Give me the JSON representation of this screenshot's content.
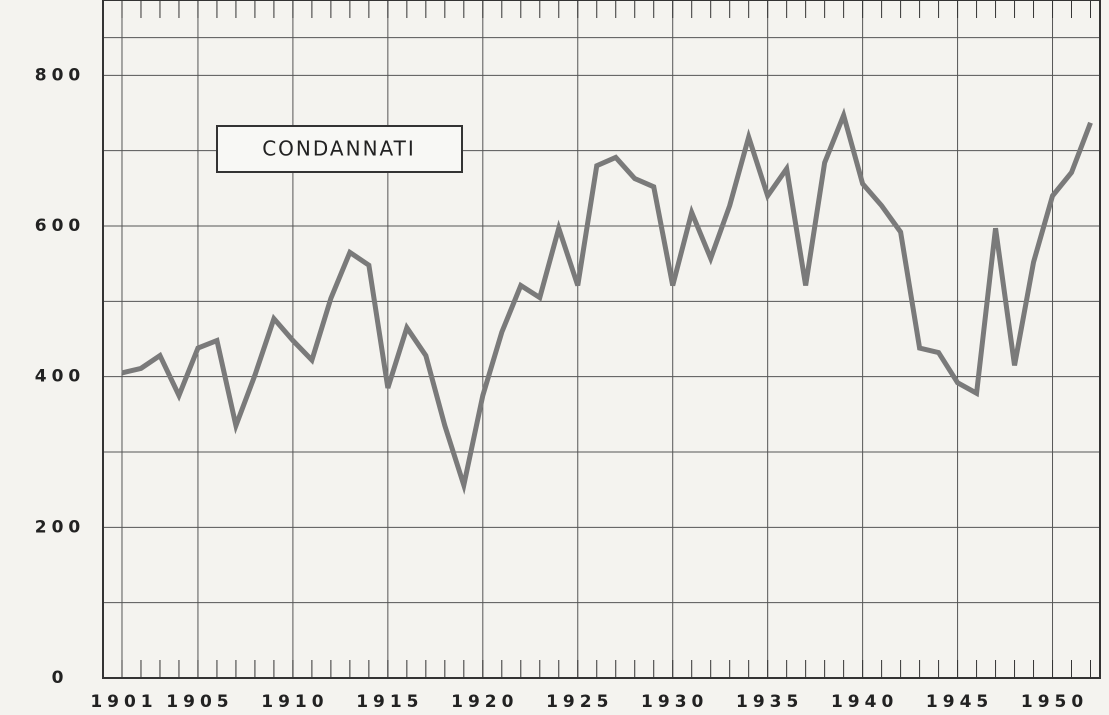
{
  "chart_data": {
    "type": "line",
    "annotation": "CONDANNATI",
    "x": [
      1901,
      1902,
      1903,
      1904,
      1905,
      1906,
      1907,
      1908,
      1909,
      1910,
      1911,
      1912,
      1913,
      1914,
      1915,
      1916,
      1917,
      1918,
      1919,
      1920,
      1921,
      1922,
      1923,
      1924,
      1925,
      1926,
      1927,
      1928,
      1929,
      1930,
      1931,
      1932,
      1933,
      1934,
      1935,
      1936,
      1937,
      1938,
      1939,
      1940,
      1941,
      1942,
      1943,
      1944,
      1945,
      1946,
      1947,
      1948,
      1949,
      1950,
      1951,
      1952
    ],
    "series": [
      {
        "color": "#7a7a7a",
        "values": [
          405,
          411,
          428,
          375,
          438,
          448,
          335,
          402,
          477,
          448,
          422,
          504,
          565,
          548,
          385,
          465,
          428,
          335,
          256,
          375,
          459,
          521,
          505,
          597,
          521,
          680,
          691,
          663,
          652,
          521,
          618,
          557,
          627,
          718,
          640,
          676,
          521,
          684,
          747,
          656,
          627,
          592,
          438,
          432,
          392,
          378,
          597,
          415,
          552,
          640,
          671,
          737
        ]
      }
    ],
    "xlim": [
      1900,
      1952.5
    ],
    "ylim": [
      0,
      900
    ],
    "xticks": [
      1901,
      1905,
      1910,
      1915,
      1920,
      1925,
      1930,
      1935,
      1940,
      1945,
      1950
    ],
    "yticks": [
      0,
      200,
      400,
      600,
      800
    ],
    "grid": true
  }
}
